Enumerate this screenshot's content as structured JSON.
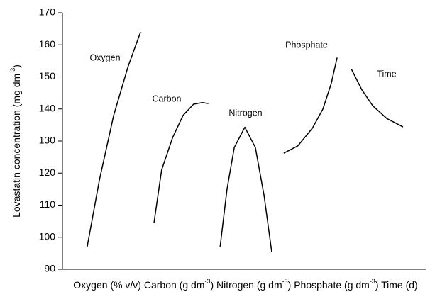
{
  "chart_data": {
    "type": "line",
    "ylabel": [
      {
        "text": "Lovastatin concentration (mg dm"
      },
      {
        "sup": "-3"
      },
      {
        "text": ")"
      }
    ],
    "xlabel": [
      {
        "text": "Oxygen (% v/v) Carbon (g dm"
      },
      {
        "sup": "-3"
      },
      {
        "text": ") Nitrogen (g dm"
      },
      {
        "sup": "-3"
      },
      {
        "text": ") Phosphate (g dm"
      },
      {
        "sup": "-3"
      },
      {
        "text": ") Time (d)"
      }
    ],
    "xlim": [
      0,
      100
    ],
    "ylim": [
      90,
      170
    ],
    "yticks": [
      90,
      100,
      110,
      120,
      130,
      140,
      150,
      160,
      170
    ],
    "color": "#000000",
    "series": [
      {
        "name": "Oxygen",
        "x": [
          6.8,
          10.2,
          14.1,
          18,
          21.5
        ],
        "values": [
          97,
          118,
          138,
          153,
          164
        ]
      },
      {
        "name": "Carbon",
        "x": [
          25.2,
          27.3,
          30.3,
          33.2,
          36.1,
          38.5,
          40.2
        ],
        "values": [
          104.5,
          121,
          131,
          138,
          141.5,
          142,
          141.7
        ]
      },
      {
        "name": "Nitrogen",
        "x": [
          43.4,
          45.3,
          47.3,
          50.2,
          53.1,
          55.5,
          57.6
        ],
        "values": [
          97,
          115,
          128,
          134.3,
          128,
          113,
          95.5
        ]
      },
      {
        "name": "Phosphate",
        "x": [
          60.9,
          64.8,
          68.8,
          71.7,
          74,
          75.6
        ],
        "values": [
          126.2,
          128.5,
          134,
          140,
          148,
          156
        ]
      },
      {
        "name": "Time",
        "x": [
          79.5,
          82.4,
          85.4,
          89.3,
          93.75
        ],
        "values": [
          152.5,
          146,
          141,
          137,
          134.4
        ]
      }
    ]
  }
}
